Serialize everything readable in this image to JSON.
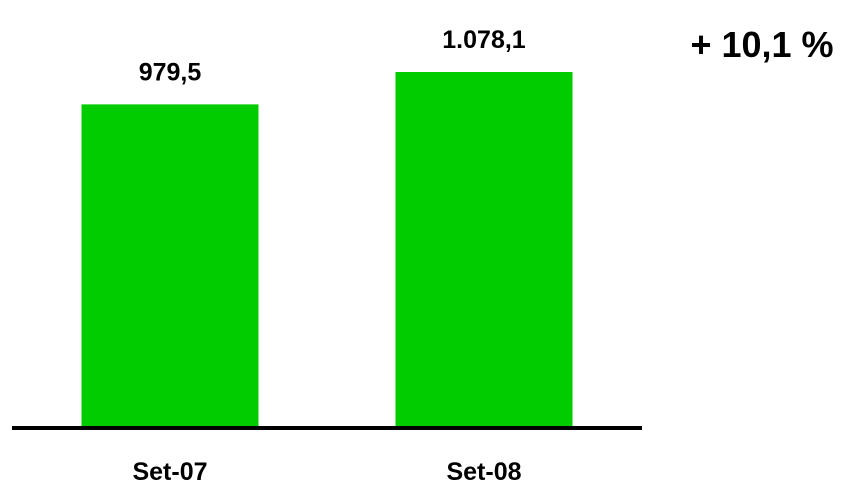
{
  "chart_data": {
    "type": "bar",
    "categories": [
      "Set-07",
      "Set-08"
    ],
    "values": [
      979.5,
      1078.1
    ],
    "value_labels": [
      "979,5",
      "1.078,1"
    ],
    "growth_annotation": "+ 10,1 %",
    "bar_color": "#00cc00",
    "axis_color": "#000000",
    "grid": false,
    "legend": "none"
  }
}
